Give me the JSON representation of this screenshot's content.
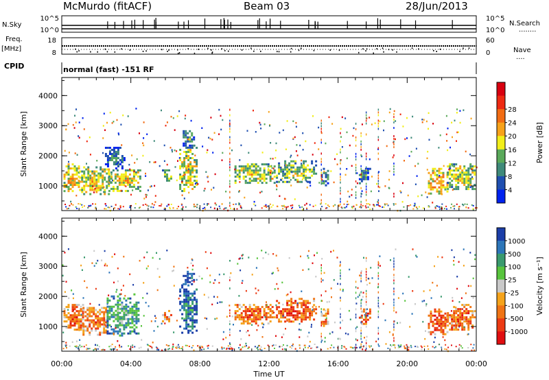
{
  "header": {
    "station": "McMurdo (fitACF)",
    "beam": "Beam 03",
    "date": "28/Jun/2013"
  },
  "side_labels": {
    "nsky": "N.Sky",
    "nsearch": "N.Search",
    "nsearch_dots": "........",
    "freq": "Freq.",
    "mhz": "[MHz]",
    "nave": "Nave",
    "nave_dots": "....",
    "cpid": "CPID"
  },
  "mode_text": "normal (fast) -151 RF",
  "colors": {
    "power": [
      "#0022ee",
      "#1f4fb0",
      "#3f8a7a",
      "#5aa95a",
      "#f2ee1a",
      "#f7a21a",
      "#f26c13",
      "#ee2a12",
      "#d8000f"
    ],
    "velocity": [
      "#1b3ea8",
      "#2d76b9",
      "#3a9a6e",
      "#58c43d",
      "#c9c9c9",
      "#f5a31b",
      "#f07414",
      "#ec3a13",
      "#e00e10"
    ]
  },
  "chart_data": [
    {
      "type": "line",
      "name": "noise-panel",
      "left_ticks": [
        "10^5",
        "10^0"
      ],
      "right_ticks": [
        "10^5",
        "10^0"
      ]
    },
    {
      "type": "line",
      "name": "frequency-panel",
      "left_ticks": [
        "18",
        "8"
      ],
      "right_ticks": [
        "60",
        "0"
      ]
    },
    {
      "type": "heatmap",
      "name": "power-panel",
      "ylabel": "Slant Range [km]",
      "yticks": [
        1000,
        2000,
        3000,
        4000
      ],
      "ylim": [
        180,
        4600
      ],
      "xlim": [
        0,
        24
      ],
      "colorbar_label": "Power [dB]",
      "colorbar_ticks": [
        "4",
        "8",
        "12",
        "16",
        "20",
        "24",
        "28"
      ],
      "approx_patches": [
        {
          "t0": 0.1,
          "t1": 1.0,
          "r0": 850,
          "r1": 1750,
          "level": 0.55
        },
        {
          "t0": 1.0,
          "t1": 2.7,
          "r0": 700,
          "r1": 1650,
          "level": 0.5
        },
        {
          "t0": 2.7,
          "t1": 4.5,
          "r0": 850,
          "r1": 1550,
          "level": 0.5
        },
        {
          "t0": 2.5,
          "t1": 3.6,
          "r0": 1600,
          "r1": 2300,
          "level": 0.2
        },
        {
          "t0": 5.8,
          "t1": 6.3,
          "r0": 1200,
          "r1": 1550,
          "level": 0.4
        },
        {
          "t0": 6.8,
          "t1": 7.8,
          "r0": 800,
          "r1": 2300,
          "level": 0.5
        },
        {
          "t0": 7.0,
          "t1": 7.6,
          "r0": 2300,
          "r1": 2850,
          "level": 0.3
        },
        {
          "t0": 10.0,
          "t1": 12.3,
          "r0": 1100,
          "r1": 1750,
          "level": 0.45
        },
        {
          "t0": 12.4,
          "t1": 14.7,
          "r0": 1150,
          "r1": 1850,
          "level": 0.4
        },
        {
          "t0": 15.0,
          "t1": 15.4,
          "r0": 1000,
          "r1": 1600,
          "level": 0.3
        },
        {
          "t0": 17.2,
          "t1": 17.8,
          "r0": 1100,
          "r1": 1600,
          "level": 0.25
        },
        {
          "t0": 21.2,
          "t1": 22.3,
          "r0": 750,
          "r1": 1600,
          "level": 0.6
        },
        {
          "t0": 22.3,
          "t1": 23.9,
          "r0": 900,
          "r1": 1750,
          "level": 0.45
        }
      ]
    },
    {
      "type": "heatmap",
      "name": "velocity-panel",
      "ylabel": "Slant Range [km]",
      "yticks": [
        1000,
        2000,
        3000,
        4000
      ],
      "ylim": [
        180,
        4600
      ],
      "xlim": [
        0,
        24
      ],
      "xlabel": "Time UT",
      "xticks": [
        "00:00",
        "04:00",
        "08:00",
        "12:00",
        "16:00",
        "20:00",
        "00:00"
      ],
      "colorbar_label": "Velocity [m s⁻¹]",
      "colorbar_ticks": [
        "1000",
        "500",
        "100",
        "25",
        "-25",
        "-100",
        "-500",
        "-1000"
      ],
      "approx_patches": [
        {
          "t0": 0.1,
          "t1": 1.2,
          "r0": 900,
          "r1": 1750,
          "level": 0.75
        },
        {
          "t0": 1.2,
          "t1": 2.6,
          "r0": 700,
          "r1": 1650,
          "level": 0.7
        },
        {
          "t0": 2.6,
          "t1": 4.5,
          "r0": 700,
          "r1": 2100,
          "level": 0.3
        },
        {
          "t0": 5.8,
          "t1": 6.3,
          "r0": 1200,
          "r1": 1550,
          "level": 0.7
        },
        {
          "t0": 6.8,
          "t1": 7.8,
          "r0": 800,
          "r1": 2400,
          "level": 0.15
        },
        {
          "t0": 7.0,
          "t1": 7.6,
          "r0": 2400,
          "r1": 2850,
          "level": 0.1
        },
        {
          "t0": 10.0,
          "t1": 12.3,
          "r0": 1100,
          "r1": 1750,
          "level": 0.75
        },
        {
          "t0": 12.4,
          "t1": 14.7,
          "r0": 1150,
          "r1": 1950,
          "level": 0.8
        },
        {
          "t0": 15.0,
          "t1": 15.4,
          "r0": 1000,
          "r1": 1600,
          "level": 0.7
        },
        {
          "t0": 17.2,
          "t1": 17.8,
          "r0": 1100,
          "r1": 1600,
          "level": 0.75
        },
        {
          "t0": 21.2,
          "t1": 22.3,
          "r0": 750,
          "r1": 1600,
          "level": 0.8
        },
        {
          "t0": 22.3,
          "t1": 23.9,
          "r0": 900,
          "r1": 1750,
          "level": 0.75
        }
      ]
    }
  ]
}
